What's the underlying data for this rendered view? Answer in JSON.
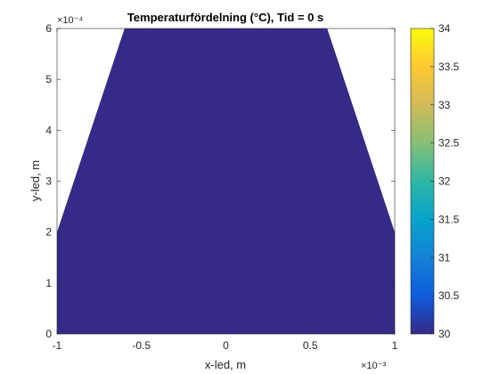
{
  "chart_data": {
    "type": "heatmap",
    "title": "Temperaturfördelning (°C), Tid = 0 s",
    "xlabel": "x-led, m",
    "ylabel": "y-led, m",
    "x_exponent_label": "×10⁻³",
    "y_exponent_label": "×10⁻⁴",
    "xlim": [
      -0.001,
      0.001
    ],
    "ylim": [
      0,
      0.0006
    ],
    "x_ticks": [
      -0.001,
      -0.0005,
      0,
      0.0005,
      0.001
    ],
    "x_tick_labels": [
      "-1",
      "-0.5",
      "0",
      "0.5",
      "1"
    ],
    "y_ticks": [
      0,
      0.0001,
      0.0002,
      0.0003,
      0.0004,
      0.0005,
      0.0006
    ],
    "y_tick_labels": [
      "0",
      "1",
      "2",
      "3",
      "4",
      "5",
      "6"
    ],
    "grid": false,
    "domain_polygon": [
      [
        -0.001,
        0
      ],
      [
        0.001,
        0
      ],
      [
        0.001,
        0.0002
      ],
      [
        0.0006,
        0.0006
      ],
      [
        -0.0006,
        0.0006
      ],
      [
        -0.001,
        0.0002
      ]
    ],
    "field_value": 30,
    "field_color": "#352a87",
    "colorbar": {
      "colormap": "parula",
      "range": [
        30,
        34
      ],
      "ticks": [
        30,
        30.5,
        31,
        31.5,
        32,
        32.5,
        33,
        33.5,
        34
      ],
      "tick_labels": [
        "30",
        "30.5",
        "31",
        "31.5",
        "32",
        "32.5",
        "33",
        "33.5",
        "34"
      ],
      "location": "right"
    }
  }
}
